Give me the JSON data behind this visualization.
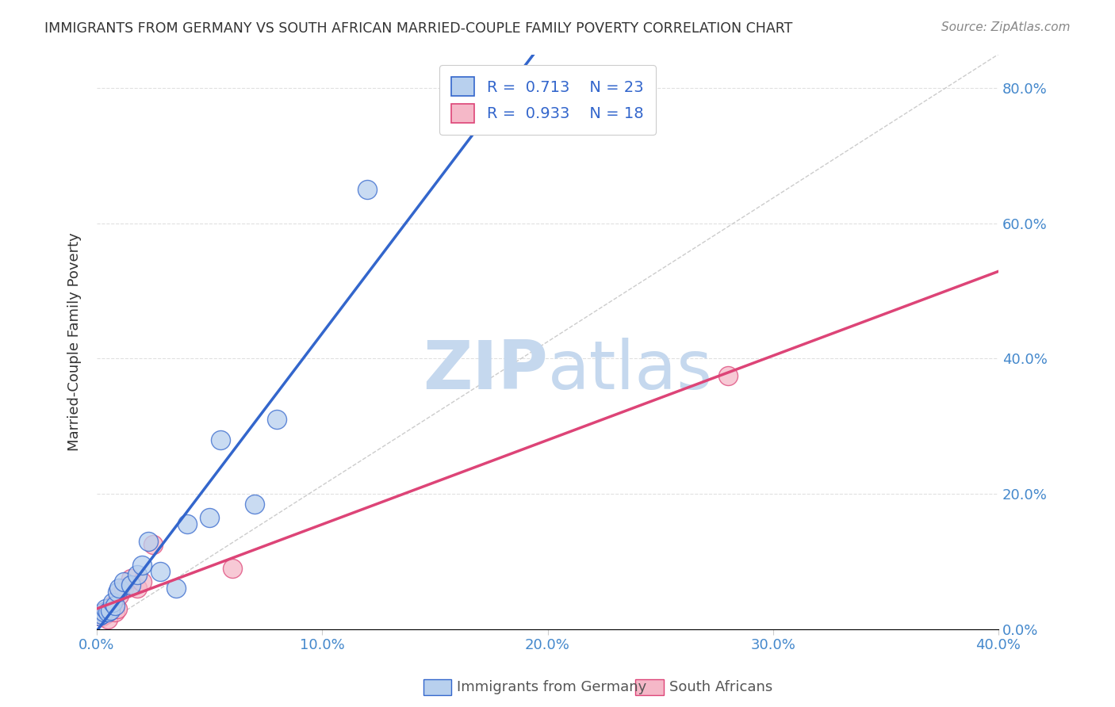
{
  "title": "IMMIGRANTS FROM GERMANY VS SOUTH AFRICAN MARRIED-COUPLE FAMILY POVERTY CORRELATION CHART",
  "source": "Source: ZipAtlas.com",
  "ylabel": "Married-Couple Family Poverty",
  "xlim": [
    0.0,
    0.4
  ],
  "ylim": [
    0.0,
    0.85
  ],
  "xticks": [
    0.0,
    0.1,
    0.2,
    0.3,
    0.4
  ],
  "yticks": [
    0.0,
    0.2,
    0.4,
    0.6,
    0.8
  ],
  "xtick_labels": [
    "0.0%",
    "10.0%",
    "20.0%",
    "30.0%",
    "40.0%"
  ],
  "ytick_labels_right": [
    "0.0%",
    "20.0%",
    "40.0%",
    "60.0%",
    "80.0%"
  ],
  "legend_labels": [
    "Immigrants from Germany",
    "South Africans"
  ],
  "R_germany": 0.713,
  "N_germany": 23,
  "R_south_africa": 0.933,
  "N_south_africa": 18,
  "blue_color": "#b8d0ee",
  "blue_line_color": "#3366cc",
  "pink_color": "#f5b8c8",
  "pink_line_color": "#dd4477",
  "germany_scatter_x": [
    0.001,
    0.002,
    0.003,
    0.004,
    0.005,
    0.006,
    0.007,
    0.008,
    0.009,
    0.01,
    0.012,
    0.015,
    0.018,
    0.02,
    0.023,
    0.028,
    0.035,
    0.04,
    0.05,
    0.055,
    0.07,
    0.08,
    0.12
  ],
  "germany_scatter_y": [
    0.02,
    0.022,
    0.025,
    0.03,
    0.025,
    0.028,
    0.04,
    0.035,
    0.055,
    0.06,
    0.07,
    0.065,
    0.08,
    0.095,
    0.13,
    0.085,
    0.06,
    0.155,
    0.165,
    0.28,
    0.185,
    0.31,
    0.65
  ],
  "sa_scatter_x": [
    0.001,
    0.002,
    0.003,
    0.004,
    0.005,
    0.005,
    0.006,
    0.007,
    0.008,
    0.009,
    0.01,
    0.012,
    0.015,
    0.018,
    0.02,
    0.025,
    0.06,
    0.28
  ],
  "sa_scatter_y": [
    0.02,
    0.018,
    0.025,
    0.022,
    0.028,
    0.015,
    0.03,
    0.035,
    0.025,
    0.03,
    0.05,
    0.06,
    0.075,
    0.06,
    0.07,
    0.125,
    0.09,
    0.375
  ],
  "watermark_zip": "ZIP",
  "watermark_atlas": "atlas",
  "watermark_color_zip": "#c5d8ee",
  "watermark_color_atlas": "#c5d8ee",
  "background_color": "#ffffff",
  "grid_color": "#cccccc"
}
